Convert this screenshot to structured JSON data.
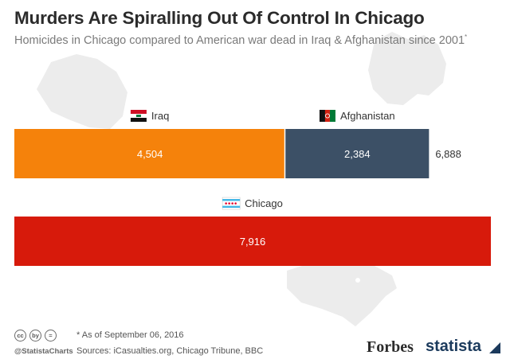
{
  "header": {
    "title": "Murders Are Spiralling Out Of Control In Chicago",
    "subtitle": "Homicides in Chicago compared to American war dead in Iraq & Afghanistan since 2001",
    "subtitle_mark": "*"
  },
  "chart_data": {
    "type": "bar",
    "orientation": "horizontal",
    "grid": false,
    "bars": [
      {
        "name": "war-dead",
        "segments": [
          {
            "name": "Iraq",
            "value": 4504,
            "value_label": "4,504",
            "color": "#f5820b",
            "flag": "iraq-flag-icon"
          },
          {
            "name": "Afghanistan",
            "value": 2384,
            "value_label": "2,384",
            "color": "#3c5066",
            "flag": "afghanistan-flag-icon"
          }
        ],
        "total": 6888,
        "total_label": "6,888"
      },
      {
        "name": "chicago",
        "segments": [
          {
            "name": "Chicago",
            "value": 7916,
            "value_label": "7,916",
            "color": "#d71a0b",
            "flag": "chicago-flag-icon"
          }
        ]
      }
    ],
    "xlim": [
      0,
      7916
    ]
  },
  "footer": {
    "footnote": "* As of September 06, 2016",
    "sources": "Sources: iCasualties.org, Chicago Tribune, BBC",
    "handle": "@StatistaCharts",
    "license_icons": [
      "cc",
      "by",
      "="
    ],
    "forbes_logo": "Forbes",
    "statista_logo": "statista"
  }
}
